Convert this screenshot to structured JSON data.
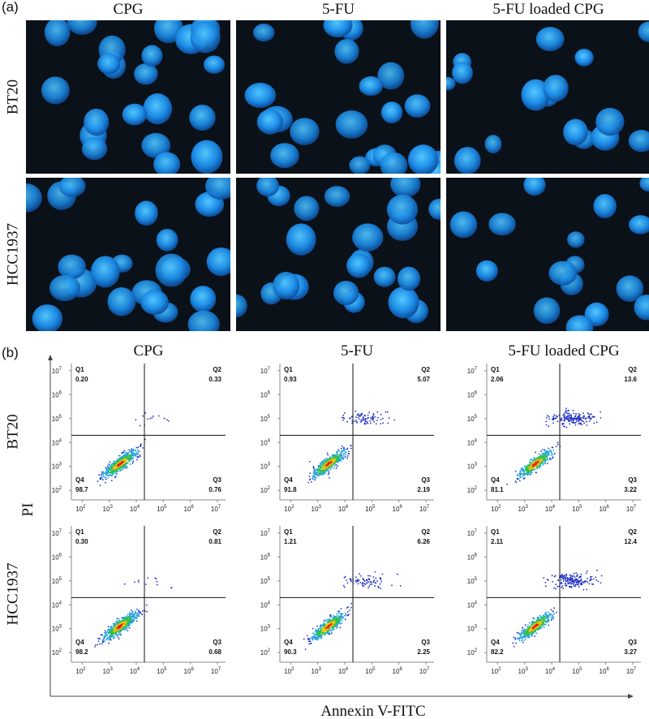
{
  "panel_a": {
    "label": "(a)",
    "columns": [
      "CPG",
      "5-FU",
      "5-FU loaded CPG"
    ],
    "rows": [
      "BT20",
      "HCC1937"
    ]
  },
  "panel_b": {
    "label": "(b)",
    "columns": [
      "CPG",
      "5-FU",
      "5-FU loaded CPG"
    ],
    "rows": [
      "BT20",
      "HCC1937"
    ],
    "y_label": "PI",
    "x_label": "Annexin V-FITC",
    "tick_base": "10",
    "tick_exponents": [
      "2",
      "3",
      "4",
      "5",
      "6",
      "7"
    ],
    "quadrant_names": [
      "Q1",
      "Q2",
      "Q3",
      "Q4"
    ],
    "plots": [
      [
        [
          "0.20",
          "0.33",
          "0.76",
          "98.7"
        ],
        [
          "0.93",
          "5.07",
          "2.19",
          "91.8"
        ],
        [
          "2.06",
          "13.6",
          "3.22",
          "81.1"
        ]
      ],
      [
        [
          "0.30",
          "0.81",
          "0.68",
          "98.2"
        ],
        [
          "1.21",
          "6.26",
          "2.25",
          "90.3"
        ],
        [
          "2.11",
          "12.4",
          "3.27",
          "82.2"
        ]
      ]
    ]
  }
}
